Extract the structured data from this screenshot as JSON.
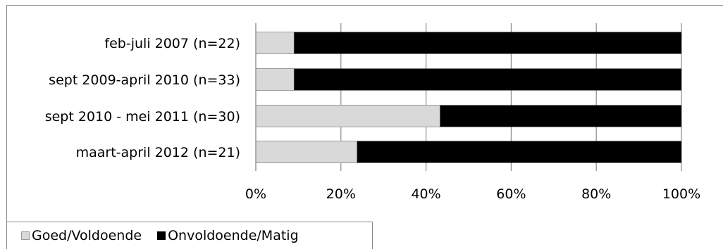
{
  "chart_data": {
    "type": "bar",
    "orientation": "horizontal",
    "stacked": "percent",
    "categories": [
      "feb-juli 2007 (n=22)",
      "sept 2009-april 2010 (n=33)",
      "sept 2010 - mei 2011 (n=30)",
      "maart-april 2012 (n=21)"
    ],
    "series": [
      {
        "name": "Goed/Voldoende",
        "values": [
          9,
          9,
          43.3,
          23.8
        ],
        "color": "#d9d9d9"
      },
      {
        "name": "Onvoldoende/Matig",
        "values": [
          91,
          91,
          56.7,
          76.2
        ],
        "color": "#000000"
      }
    ],
    "x_ticks": [
      "0%",
      "20%",
      "40%",
      "60%",
      "80%",
      "100%"
    ],
    "xlim": [
      0,
      100
    ],
    "grid": true,
    "legend_position": "bottom-left",
    "title": "",
    "xlabel": "",
    "ylabel": ""
  }
}
